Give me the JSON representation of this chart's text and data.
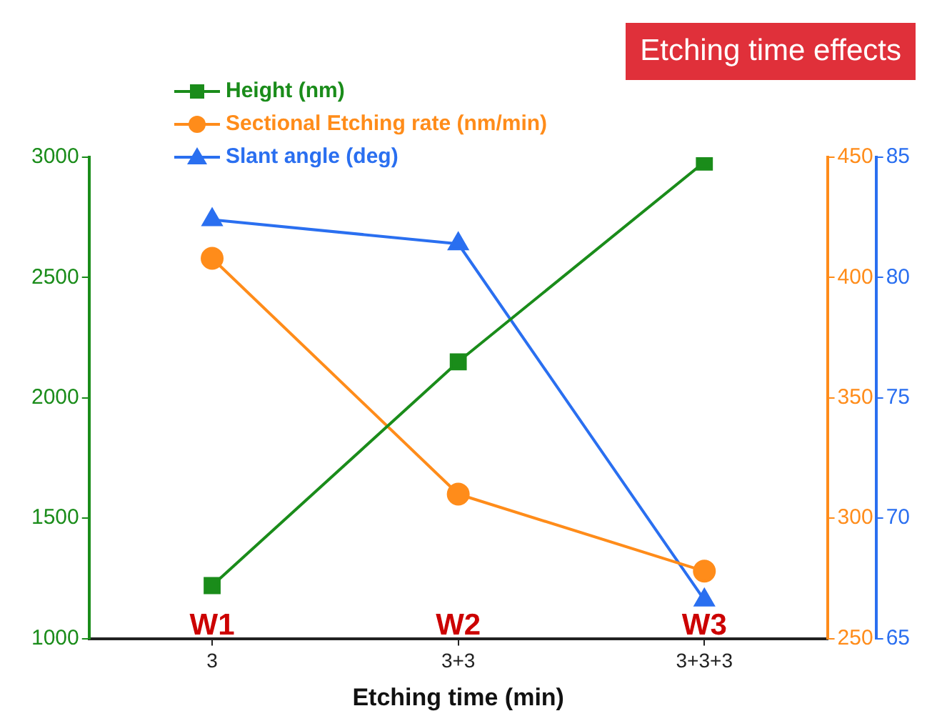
{
  "chart_data": {
    "type": "line",
    "title": "Etching time effects",
    "xlabel": "Etching time (min)",
    "categories": [
      "3",
      "3+3",
      "3+3+3"
    ],
    "series": [
      {
        "name": "Height (nm)",
        "color": "#1a8c1a",
        "values": [
          1220,
          2150,
          2980
        ],
        "marker": "square"
      },
      {
        "name": "Sectional Etching rate (nm/min)",
        "color": "#ff8c1a",
        "values": [
          408,
          310,
          278
        ],
        "marker": "circle",
        "axis": "y2"
      },
      {
        "name": "Slant angle (deg)",
        "color": "#2a6ff0",
        "values": [
          82.4,
          81.4,
          66.6
        ],
        "marker": "triangle",
        "axis": "y3"
      }
    ],
    "ylim": [
      1000,
      3000
    ],
    "yticks": [
      1000,
      1500,
      2000,
      2500,
      3000
    ],
    "y2lim": [
      250,
      450
    ],
    "y2ticks": [
      250,
      300,
      350,
      400,
      450
    ],
    "y3lim": [
      65,
      85
    ],
    "y3ticks": [
      65,
      70,
      75,
      80,
      85
    ],
    "annotations": [
      "W1",
      "W2",
      "W3"
    ],
    "legend": "top left",
    "grid": false,
    "line_style": "solid"
  }
}
